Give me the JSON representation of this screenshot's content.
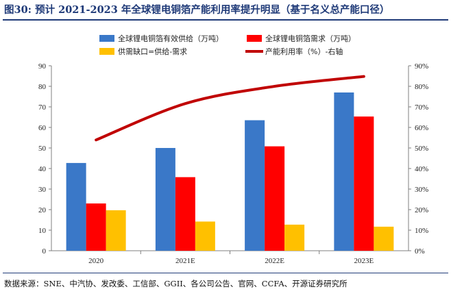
{
  "figure": {
    "title": "图30:  预计 2021-2023 年全球锂电铜箔产能利用率提升明显（基于名义总产能口径）",
    "source": "数据来源：SNE、中汽协、发改委、工信部、GGII、各公司公告、官网、CCFA、开源证券研究所"
  },
  "colors": {
    "title": "#1f3a78",
    "supply": "#3a78c8",
    "demand": "#ff0000",
    "gap": "#ffc000",
    "utilization": "#c00000"
  },
  "chart_data": {
    "type": "bar",
    "categories": [
      "2020",
      "2021E",
      "2022E",
      "2023E"
    ],
    "series": [
      {
        "name": "全球锂电铜箔有效供给（万吨）",
        "values": [
          42.7,
          50,
          63.5,
          77
        ],
        "axis": "left",
        "kind": "bar"
      },
      {
        "name": "全球锂电铜箔需求（万吨）",
        "values": [
          23,
          35.8,
          50.8,
          65.3
        ],
        "axis": "left",
        "kind": "bar"
      },
      {
        "name": "供需缺口=供给-需求",
        "values": [
          19.7,
          14.2,
          12.7,
          11.7
        ],
        "axis": "left",
        "kind": "bar"
      },
      {
        "name": "产能利用率（%）-右轴",
        "values": [
          53.9,
          71.6,
          80,
          84.8
        ],
        "axis": "right",
        "kind": "line"
      }
    ],
    "y_left": {
      "min": 0,
      "max": 90,
      "step": 10,
      "ticks": [
        "0",
        "10",
        "20",
        "30",
        "40",
        "50",
        "60",
        "70",
        "80",
        "90"
      ]
    },
    "y_right": {
      "min": 0,
      "max": 90,
      "step": 10,
      "ticks": [
        "0%",
        "10%",
        "20%",
        "30%",
        "40%",
        "50%",
        "60%",
        "70%",
        "80%",
        "90%"
      ]
    },
    "grid": false,
    "legend_position": "top"
  }
}
